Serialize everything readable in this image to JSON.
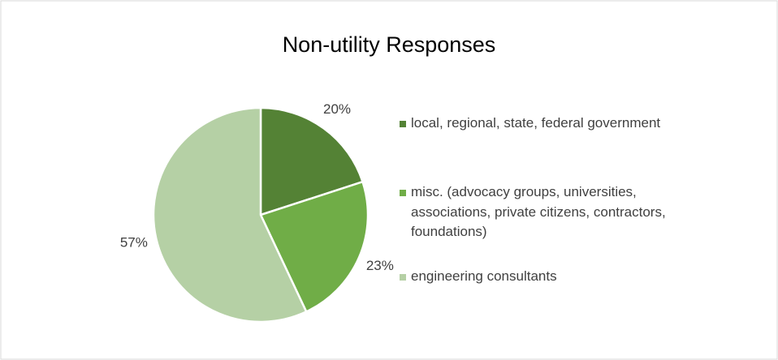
{
  "chart_data": {
    "type": "pie",
    "title": "Non-utility Responses",
    "categories": [
      "local, regional, state, federal government",
      "misc. (advocacy groups, universities, associations, private citizens, contractors, foundations)",
      "engineering consultants"
    ],
    "values": [
      20,
      23,
      57
    ],
    "value_labels": [
      "20%",
      "23%",
      "57%"
    ],
    "colors": [
      "#548235",
      "#70ad47",
      "#b5d0a5"
    ],
    "legend": "right"
  }
}
